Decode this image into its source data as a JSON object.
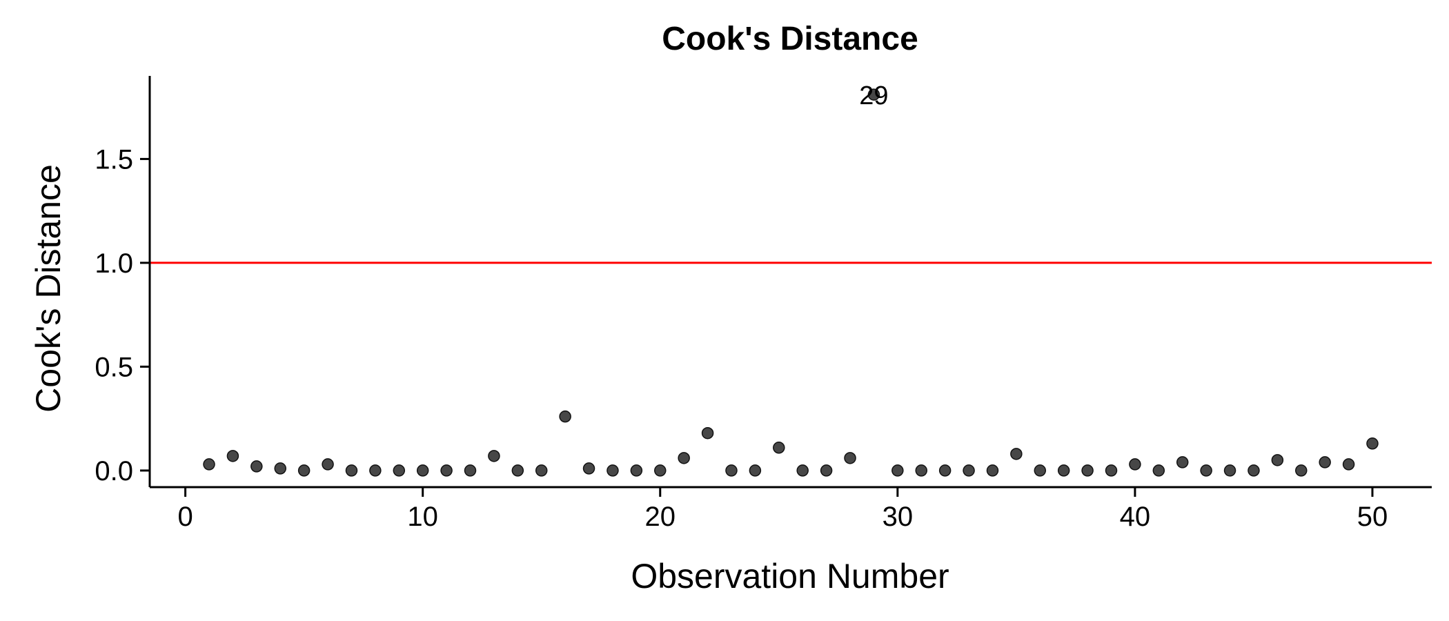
{
  "chart_data": {
    "type": "scatter",
    "title": "Cook's Distance",
    "xlabel": "Observation Number",
    "ylabel": "Cook's Distance",
    "xlim": [
      -1.5,
      52.5
    ],
    "ylim": [
      -0.08,
      1.9
    ],
    "xticks": [
      0,
      10,
      20,
      30,
      40,
      50
    ],
    "xtick_labels": [
      "0",
      "10",
      "20",
      "30",
      "40",
      "50"
    ],
    "yticks": [
      0.0,
      0.5,
      1.0,
      1.5
    ],
    "ytick_labels": [
      "0.0",
      "0.5",
      "1.0",
      "1.5"
    ],
    "grid": false,
    "legend": "none",
    "threshold": {
      "value": 1.0,
      "color": "#ff0000"
    },
    "point_color": "#333333",
    "x": [
      1,
      2,
      3,
      4,
      5,
      6,
      7,
      8,
      9,
      10,
      11,
      12,
      13,
      14,
      15,
      16,
      17,
      18,
      19,
      20,
      21,
      22,
      23,
      24,
      25,
      26,
      27,
      28,
      29,
      30,
      31,
      32,
      33,
      34,
      35,
      36,
      37,
      38,
      39,
      40,
      41,
      42,
      43,
      44,
      45,
      46,
      47,
      48,
      49,
      50
    ],
    "y": [
      0.03,
      0.07,
      0.02,
      0.01,
      0.0,
      0.03,
      0.0,
      0.0,
      0.0,
      0.0,
      0.0,
      0.0,
      0.07,
      0.0,
      0.0,
      0.26,
      0.01,
      0.0,
      0.0,
      0.0,
      0.06,
      0.18,
      0.0,
      0.0,
      0.11,
      0.0,
      0.0,
      0.06,
      1.81,
      0.0,
      0.0,
      0.0,
      0.0,
      0.0,
      0.08,
      0.0,
      0.0,
      0.0,
      0.0,
      0.03,
      0.0,
      0.04,
      0.0,
      0.0,
      0.0,
      0.05,
      0.0,
      0.04,
      0.03,
      0.13
    ],
    "annotations": [
      {
        "x": 29,
        "y": 1.81,
        "text": "29"
      }
    ]
  }
}
